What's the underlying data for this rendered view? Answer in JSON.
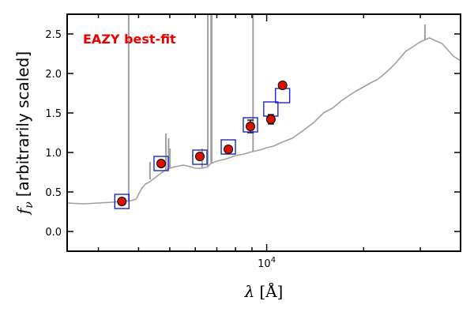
{
  "chart_data": {
    "type": "scatter",
    "title": "",
    "xlabel": "λ [Å]",
    "ylabel": "f_ν [arbitrarily scaled]",
    "ylabel_symbol": "f",
    "ylabel_sub": "ν",
    "ylabel_text": "[arbitrarily scaled]",
    "xlabel_symbol": "λ",
    "xlabel_text": "[Å]",
    "x_scale": "log",
    "xlim": [
      2400,
      40000
    ],
    "ylim": [
      -0.25,
      2.75
    ],
    "xticks": [
      {
        "value": 10000,
        "base": "10",
        "exp": "4"
      }
    ],
    "yticks": [
      0.0,
      0.5,
      1.0,
      1.5,
      2.0,
      2.5
    ],
    "ytick_labels": [
      "0.0",
      "0.5",
      "1.0",
      "1.5",
      "2.0",
      "2.5"
    ],
    "grid": false,
    "annotation": {
      "text": "EAZY best-fit",
      "color": "#ee0000"
    },
    "series": [
      {
        "kind": "model",
        "color": "#a0a0a0",
        "x": [
          2400,
          2700,
          3000,
          3300,
          3550,
          3800,
          3930,
          3960,
          4000,
          4100,
          4200,
          4300,
          4500,
          4700,
          4861,
          5000,
          5200,
          5500,
          5800,
          6000,
          6300,
          6563,
          6700,
          7000,
          7500,
          8000,
          8500,
          9000,
          9500,
          10000,
          10500,
          11000,
          12000,
          13000,
          14000,
          15000,
          16000,
          17000,
          18000,
          19000,
          20000,
          21000,
          22000,
          23000,
          24000,
          25000,
          26000,
          27000,
          28000,
          30000,
          32000,
          35000,
          38000,
          40000
        ],
        "y": [
          0.36,
          0.35,
          0.36,
          0.37,
          0.38,
          0.39,
          0.41,
          0.43,
          0.47,
          0.55,
          0.6,
          0.62,
          0.68,
          0.74,
          0.78,
          0.8,
          0.82,
          0.84,
          0.82,
          0.8,
          0.8,
          0.82,
          0.86,
          0.89,
          0.92,
          0.96,
          0.98,
          1.01,
          1.03,
          1.06,
          1.08,
          1.12,
          1.18,
          1.28,
          1.38,
          1.5,
          1.56,
          1.65,
          1.72,
          1.78,
          1.83,
          1.88,
          1.92,
          1.98,
          2.05,
          2.12,
          2.2,
          2.28,
          2.32,
          2.4,
          2.45,
          2.38,
          2.22,
          2.16
        ]
      },
      {
        "kind": "emission-lines",
        "color": "#a0a0a0",
        "lines": [
          {
            "x": 3727,
            "base": 0.39,
            "peak": 2.75
          },
          {
            "x": 4340,
            "base": 0.66,
            "peak": 0.88
          },
          {
            "x": 4861,
            "base": 0.78,
            "peak": 1.24
          },
          {
            "x": 4959,
            "base": 0.79,
            "peak": 1.18
          },
          {
            "x": 5007,
            "base": 0.8,
            "peak": 1.05
          },
          {
            "x": 6300,
            "base": 0.8,
            "peak": 1.05
          },
          {
            "x": 6563,
            "base": 0.82,
            "peak": 2.75
          },
          {
            "x": 6720,
            "base": 0.86,
            "peak": 2.75
          },
          {
            "x": 6750,
            "base": 0.86,
            "peak": 2.75
          },
          {
            "x": 9069,
            "base": 1.01,
            "peak": 2.75
          },
          {
            "x": 31000,
            "base": 2.42,
            "peak": 2.62
          }
        ]
      },
      {
        "kind": "model-photometry",
        "marker": "open-square",
        "color": "#2222cc",
        "x": [
          3550,
          4700,
          6200,
          7600,
          8900,
          10300,
          11200
        ],
        "y": [
          0.38,
          0.86,
          0.94,
          1.07,
          1.35,
          1.55,
          1.72
        ]
      },
      {
        "kind": "observed-photometry",
        "marker": "filled-circle",
        "color": "#dd1100",
        "x": [
          3550,
          4700,
          6200,
          7600,
          8900,
          10300,
          11200
        ],
        "y": [
          0.38,
          0.86,
          0.95,
          1.04,
          1.33,
          1.42,
          1.85
        ],
        "yerr": [
          0.02,
          0.02,
          0.03,
          0.04,
          0.08,
          0.06,
          0.04
        ]
      }
    ]
  }
}
